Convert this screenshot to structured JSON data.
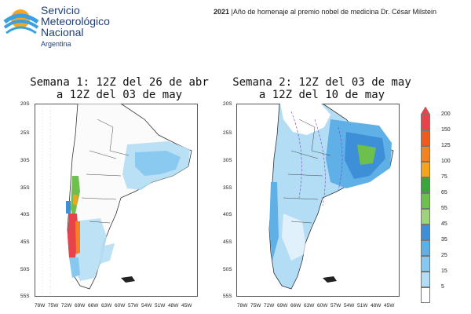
{
  "header": {
    "org_line1": "Servicio",
    "org_line2": "Meteorológico",
    "org_line3": "Nacional",
    "org_country": "Argentina",
    "note_year": "2021",
    "note_text": " |Año de homenaje al premio nobel de medicina Dr. César Milstein"
  },
  "panels": [
    {
      "title_line1": "Semana 1: 12Z del 26 de abr",
      "title_line2": "a 12Z del 03 de may"
    },
    {
      "title_line1": "Semana 2: 12Z del 03 de may",
      "title_line2": "a 12Z del 10 de may"
    }
  ],
  "axes": {
    "y_ticks": [
      "20S",
      "25S",
      "30S",
      "35S",
      "40S",
      "45S",
      "50S",
      "55S"
    ],
    "x_ticks": [
      "78W",
      "75W",
      "72W",
      "69W",
      "66W",
      "63W",
      "60W",
      "57W",
      "54W",
      "51W",
      "48W",
      "45W"
    ]
  },
  "legend": {
    "levels": [
      "200",
      "150",
      "125",
      "100",
      "75",
      "65",
      "55",
      "45",
      "35",
      "25",
      "15",
      "5"
    ],
    "colors": [
      "#e8434a",
      "#f05a1e",
      "#f58220",
      "#f7a21b",
      "#3aa53d",
      "#6dc04e",
      "#9fd27a",
      "#3d8fd8",
      "#5fb0e6",
      "#86c8ef",
      "#b2ddf5",
      "#ffffff"
    ]
  },
  "colors": {
    "brand_blue": "#1f3f7a",
    "logo_orange": "#f5a623",
    "logo_blue": "#3aa0e0"
  }
}
